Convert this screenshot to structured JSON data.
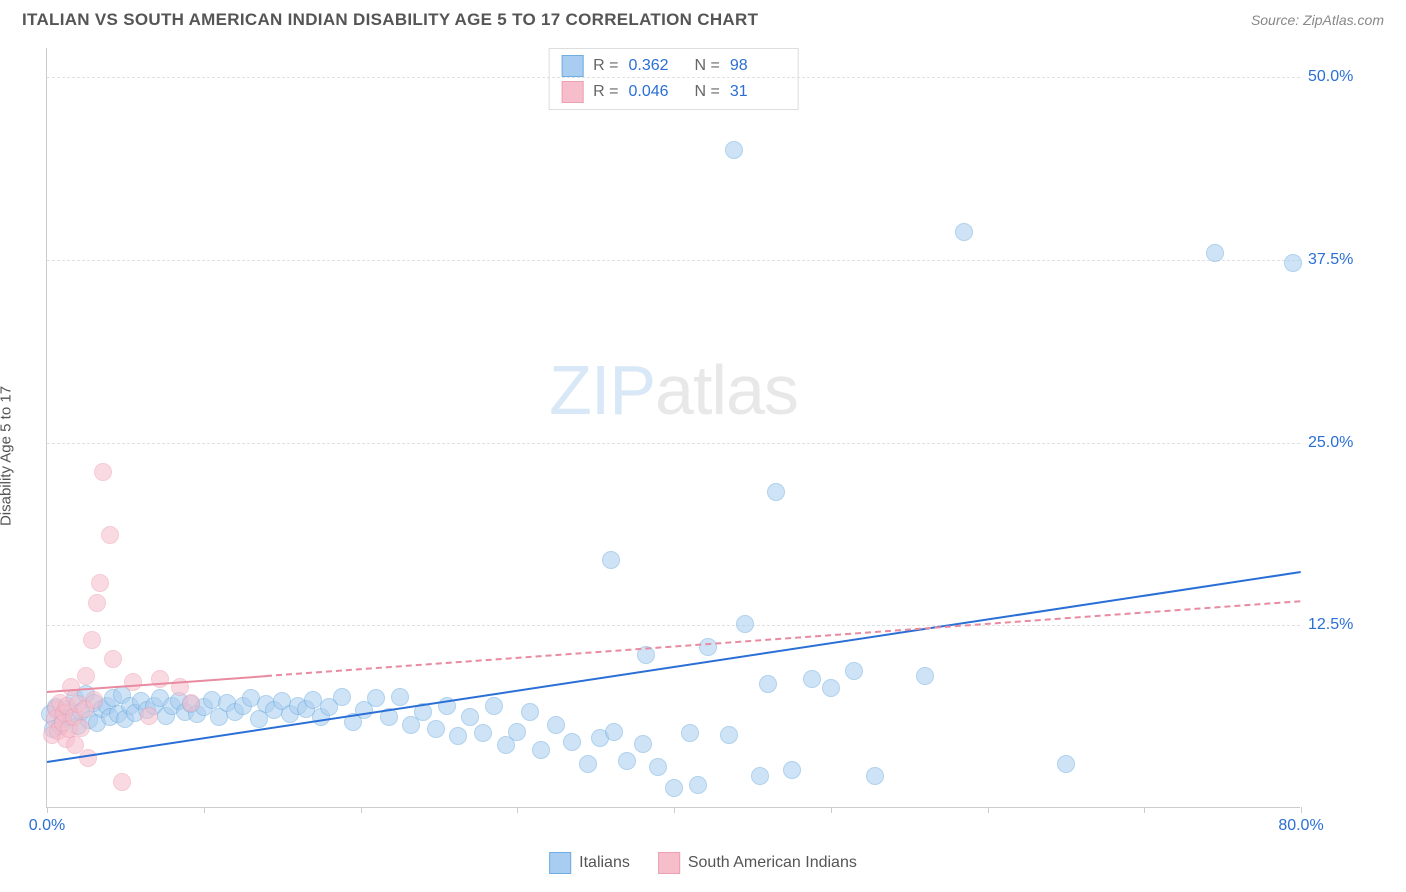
{
  "header": {
    "title": "ITALIAN VS SOUTH AMERICAN INDIAN DISABILITY AGE 5 TO 17 CORRELATION CHART",
    "source_label": "Source: ",
    "source_name": "ZipAtlas.com"
  },
  "chart": {
    "type": "scatter",
    "ylabel": "Disability Age 5 to 17",
    "xlim": [
      0,
      80
    ],
    "ylim": [
      0,
      52
    ],
    "x_ticks": [
      0,
      10,
      20,
      30,
      40,
      50,
      60,
      70,
      80
    ],
    "x_tick_labels_shown": {
      "0": "0.0%",
      "80": "80.0%"
    },
    "y_ticks": [
      12.5,
      25.0,
      37.5,
      50.0
    ],
    "y_tick_labels": [
      "12.5%",
      "25.0%",
      "37.5%",
      "50.0%"
    ],
    "grid_color": "#e0e0e0",
    "axis_color": "#cccccc",
    "xlabel_color": "#2a6fd6",
    "ylabel_color": "#2a6fd6",
    "background_color": "#ffffff",
    "marker_radius": 9,
    "marker_border_width": 1,
    "watermark": {
      "text_a": "ZIP",
      "text_b": "atlas"
    },
    "series": [
      {
        "name": "Italians",
        "color_fill": "#a9cdf0",
        "color_stroke": "#6faee0",
        "fill_opacity": 0.55,
        "R": "0.362",
        "N": "98",
        "trend": {
          "x1": 0,
          "y1": 3.2,
          "x2": 80,
          "y2": 16.2,
          "color": "#2a6fd6",
          "width": 2.5,
          "dash_from_x": null
        },
        "points": [
          [
            0.2,
            6.4
          ],
          [
            0.4,
            5.4
          ],
          [
            0.6,
            6.9
          ],
          [
            0.8,
            5.6
          ],
          [
            1.0,
            6.1
          ],
          [
            1.3,
            6.8
          ],
          [
            1.5,
            6.2
          ],
          [
            1.8,
            7.5
          ],
          [
            2.0,
            5.6
          ],
          [
            2.2,
            6.6
          ],
          [
            2.5,
            7.8
          ],
          [
            2.7,
            6.0
          ],
          [
            3.0,
            7.2
          ],
          [
            3.2,
            5.8
          ],
          [
            3.5,
            6.8
          ],
          [
            3.8,
            7.0
          ],
          [
            4.0,
            6.2
          ],
          [
            4.2,
            7.5
          ],
          [
            4.5,
            6.4
          ],
          [
            4.8,
            7.7
          ],
          [
            5.0,
            6.1
          ],
          [
            5.3,
            7.0
          ],
          [
            5.6,
            6.5
          ],
          [
            6.0,
            7.3
          ],
          [
            6.4,
            6.7
          ],
          [
            6.8,
            7.0
          ],
          [
            7.2,
            7.5
          ],
          [
            7.6,
            6.3
          ],
          [
            8.0,
            7.0
          ],
          [
            8.4,
            7.3
          ],
          [
            8.8,
            6.6
          ],
          [
            9.2,
            7.1
          ],
          [
            9.6,
            6.4
          ],
          [
            10.0,
            6.9
          ],
          [
            10.5,
            7.4
          ],
          [
            11.0,
            6.2
          ],
          [
            11.5,
            7.2
          ],
          [
            12.0,
            6.6
          ],
          [
            12.5,
            7.0
          ],
          [
            13.0,
            7.5
          ],
          [
            13.5,
            6.1
          ],
          [
            14.0,
            7.1
          ],
          [
            14.5,
            6.7
          ],
          [
            15.0,
            7.3
          ],
          [
            15.5,
            6.4
          ],
          [
            16.0,
            7.0
          ],
          [
            16.5,
            6.8
          ],
          [
            17.0,
            7.4
          ],
          [
            17.5,
            6.2
          ],
          [
            18.0,
            6.9
          ],
          [
            18.8,
            7.6
          ],
          [
            19.5,
            5.9
          ],
          [
            20.2,
            6.7
          ],
          [
            21.0,
            7.5
          ],
          [
            21.8,
            6.2
          ],
          [
            22.5,
            7.6
          ],
          [
            23.2,
            5.7
          ],
          [
            24.0,
            6.6
          ],
          [
            24.8,
            5.4
          ],
          [
            25.5,
            7.0
          ],
          [
            26.2,
            4.9
          ],
          [
            27.0,
            6.2
          ],
          [
            27.8,
            5.1
          ],
          [
            28.5,
            7.0
          ],
          [
            29.3,
            4.3
          ],
          [
            30.0,
            5.2
          ],
          [
            30.8,
            6.6
          ],
          [
            31.5,
            4.0
          ],
          [
            32.5,
            5.7
          ],
          [
            33.5,
            4.5
          ],
          [
            34.5,
            3.0
          ],
          [
            35.3,
            4.8
          ],
          [
            36.0,
            17.0
          ],
          [
            36.2,
            5.2
          ],
          [
            37.0,
            3.2
          ],
          [
            38.0,
            4.4
          ],
          [
            38.2,
            10.5
          ],
          [
            39.0,
            2.8
          ],
          [
            40.0,
            1.4
          ],
          [
            41.0,
            5.1
          ],
          [
            41.5,
            1.6
          ],
          [
            42.2,
            11.0
          ],
          [
            43.5,
            5.0
          ],
          [
            43.8,
            45.0
          ],
          [
            44.5,
            12.6
          ],
          [
            45.5,
            2.2
          ],
          [
            46.0,
            8.5
          ],
          [
            46.5,
            21.6
          ],
          [
            47.5,
            2.6
          ],
          [
            48.8,
            8.8
          ],
          [
            50.0,
            8.2
          ],
          [
            51.5,
            9.4
          ],
          [
            52.8,
            2.2
          ],
          [
            56.0,
            9.0
          ],
          [
            58.5,
            39.4
          ],
          [
            65.0,
            3.0
          ],
          [
            74.5,
            38.0
          ],
          [
            79.5,
            37.3
          ]
        ]
      },
      {
        "name": "South American Indians",
        "color_fill": "#f6bdcb",
        "color_stroke": "#eda0b2",
        "fill_opacity": 0.55,
        "R": "0.046",
        "N": "31",
        "trend": {
          "x1": 0,
          "y1": 8.0,
          "x2": 80,
          "y2": 14.2,
          "color": "#e88aa0",
          "width": 2,
          "dash_from_x": 14
        },
        "points": [
          [
            0.3,
            5.0
          ],
          [
            0.5,
            6.1
          ],
          [
            0.6,
            6.8
          ],
          [
            0.7,
            5.3
          ],
          [
            0.8,
            7.2
          ],
          [
            1.0,
            5.8
          ],
          [
            1.1,
            6.5
          ],
          [
            1.2,
            4.7
          ],
          [
            1.3,
            7.0
          ],
          [
            1.4,
            5.4
          ],
          [
            1.5,
            8.3
          ],
          [
            1.7,
            6.2
          ],
          [
            1.8,
            4.3
          ],
          [
            2.0,
            7.1
          ],
          [
            2.2,
            5.5
          ],
          [
            2.4,
            6.8
          ],
          [
            2.5,
            9.0
          ],
          [
            2.6,
            3.4
          ],
          [
            2.9,
            11.5
          ],
          [
            3.0,
            7.4
          ],
          [
            3.2,
            14.0
          ],
          [
            3.4,
            15.4
          ],
          [
            3.6,
            23.0
          ],
          [
            4.0,
            18.7
          ],
          [
            4.2,
            10.2
          ],
          [
            4.8,
            1.8
          ],
          [
            5.5,
            8.6
          ],
          [
            6.5,
            6.3
          ],
          [
            7.2,
            8.8
          ],
          [
            8.5,
            8.3
          ],
          [
            9.2,
            7.2
          ]
        ]
      }
    ],
    "legend_top": {
      "stat_label_r": "R  = ",
      "stat_label_n": "N  = ",
      "value_color": "#2a6fd6"
    },
    "legend_bottom": {
      "items": [
        "Italians",
        "South American Indians"
      ]
    }
  }
}
